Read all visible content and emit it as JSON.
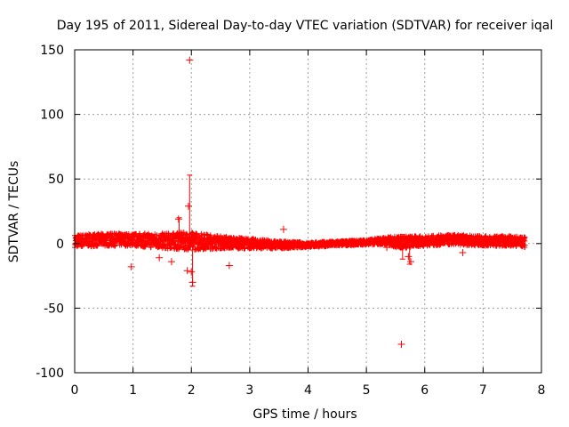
{
  "chart_data": {
    "type": "scatter",
    "title": "Day 195 of 2011, Sidereal Day-to-day VTEC variation (SDTVAR) for receiver iqal",
    "xlabel": "GPS time / hours",
    "ylabel": "SDTVAR / TECUs",
    "xlim": [
      0,
      8
    ],
    "ylim": [
      -100,
      150
    ],
    "xticks": [
      0,
      1,
      2,
      3,
      4,
      5,
      6,
      7,
      8
    ],
    "yticks": [
      -100,
      -50,
      0,
      50,
      100,
      150
    ],
    "xtick_labels": [
      "0",
      "1",
      "2",
      "3",
      "4",
      "5",
      "6",
      "7",
      "8"
    ],
    "ytick_labels": [
      "-100",
      "-50",
      "0",
      "50",
      "100",
      "150"
    ],
    "grid": true,
    "series_color": "#ff0000",
    "marker": "+",
    "band": {
      "x": [
        0.0,
        0.5,
        1.0,
        1.5,
        2.0,
        2.5,
        3.0,
        3.5,
        4.0,
        4.5,
        5.0,
        5.3,
        5.6,
        6.0,
        6.5,
        7.0,
        7.5,
        7.72
      ],
      "center": [
        2,
        3,
        3,
        2,
        2,
        1,
        0,
        -1,
        -1,
        0,
        1,
        2,
        1,
        2,
        3,
        2,
        2,
        1
      ],
      "half_width": [
        5,
        5,
        5,
        6,
        7,
        5,
        4,
        3,
        2,
        2,
        2,
        3,
        5,
        4,
        4,
        4,
        4,
        4
      ]
    },
    "outliers": [
      {
        "x": 1.97,
        "y": 142
      },
      {
        "x": 1.95,
        "y": 29
      },
      {
        "x": 1.78,
        "y": 19
      },
      {
        "x": 0.97,
        "y": -18
      },
      {
        "x": 1.93,
        "y": -21
      },
      {
        "x": 2.0,
        "y": -22
      },
      {
        "x": 2.02,
        "y": -30
      },
      {
        "x": 2.65,
        "y": -17
      },
      {
        "x": 3.58,
        "y": 11
      },
      {
        "x": 5.6,
        "y": -78
      },
      {
        "x": 5.35,
        "y": -3
      },
      {
        "x": 5.72,
        "y": -10
      },
      {
        "x": 5.76,
        "y": -14
      },
      {
        "x": 6.65,
        "y": -7
      },
      {
        "x": 1.45,
        "y": -11
      },
      {
        "x": 1.66,
        "y": -14
      }
    ],
    "error_bars": [
      {
        "x": 1.97,
        "low": -5,
        "high": 53
      },
      {
        "x": 2.02,
        "low": -33,
        "high": 2
      },
      {
        "x": 1.79,
        "low": 5,
        "high": 20
      },
      {
        "x": 5.62,
        "low": -12,
        "high": 7
      },
      {
        "x": 5.74,
        "low": -16,
        "high": 6
      }
    ]
  }
}
